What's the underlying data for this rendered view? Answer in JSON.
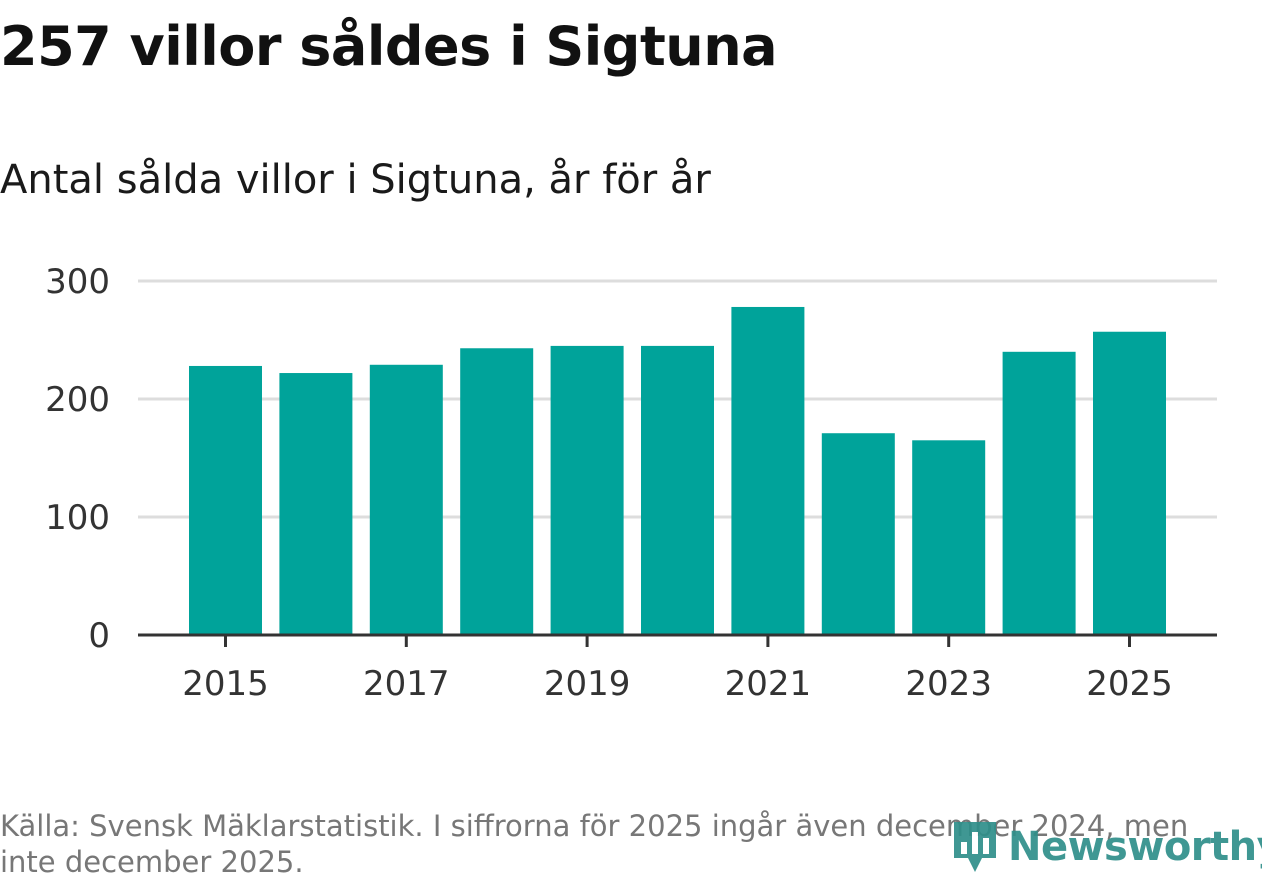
{
  "header": {
    "title": "257 villor såldes i Sigtuna",
    "subtitle": "Antal sålda villor i Sigtuna, år för år"
  },
  "footer": {
    "source": "Källa: Svensk Mäklarstatistik. I siffrorna för 2025 ingår även december 2024, men inte december 2025.",
    "logo_text": "Newsworthy",
    "logo_icon": "bar-chart-pin-icon"
  },
  "colors": {
    "bar": "#00a39a",
    "grid": "#dddddd",
    "axis": "#333333",
    "logo": "#2f8f8a"
  },
  "chart_data": {
    "type": "bar",
    "categories": [
      "2015",
      "2016",
      "2017",
      "2018",
      "2019",
      "2020",
      "2021",
      "2022",
      "2023",
      "2024",
      "2025"
    ],
    "values": [
      228,
      222,
      229,
      243,
      245,
      245,
      278,
      171,
      165,
      240,
      257
    ],
    "x_tick_labels": [
      "2015",
      "2017",
      "2019",
      "2021",
      "2023",
      "2025"
    ],
    "y_ticks": [
      0,
      100,
      200,
      300
    ],
    "ylim": [
      0,
      300
    ],
    "grid": true,
    "xlabel": "",
    "ylabel": ""
  }
}
